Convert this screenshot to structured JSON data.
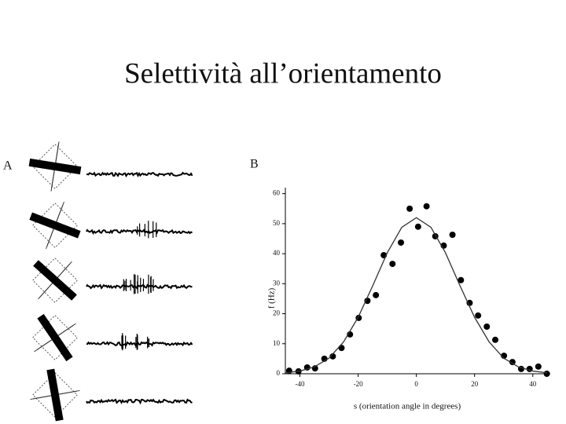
{
  "title": "Selettività all’orientamento",
  "panel_a": {
    "label": "A"
  },
  "chart_data": {
    "type": "scatter",
    "panel_label": "B",
    "x_label": "s (orientation angle in degrees)",
    "y_label": "f (Hz)",
    "xlim": [
      -45,
      46
    ],
    "ylim": [
      0,
      62
    ],
    "xticks": [
      -40,
      -20,
      0,
      20,
      40
    ],
    "yticks": [
      0,
      10,
      20,
      30,
      40,
      50,
      60
    ],
    "series": [
      {
        "type": "scatter",
        "color": "#000000",
        "x": [
          -43.7,
          -40.5,
          -37.5,
          -34.8,
          -31.6,
          -28.7,
          -25.7,
          -22.8,
          -19.8,
          -16.8,
          -13.9,
          -11.2,
          -8.2,
          -5.3,
          -2.3,
          0.6,
          3.5,
          6.5,
          9.4,
          12.4,
          15.3,
          18.3,
          21.2,
          24.2,
          27.1,
          30.1,
          33.0,
          36.0,
          38.9,
          41.9,
          44.8
        ],
        "values": [
          1.0,
          0.8,
          2.1,
          1.8,
          5.0,
          5.8,
          8.6,
          13.1,
          18.6,
          24.3,
          26.2,
          39.5,
          36.6,
          43.7,
          55.0,
          49.0,
          55.8,
          45.8,
          42.7,
          46.3,
          31.2,
          23.6,
          19.4,
          15.7,
          11.3,
          6.0,
          3.9,
          1.6,
          1.6,
          2.4,
          0
        ]
      },
      {
        "type": "line",
        "color": "#333333",
        "x": [
          -45,
          -40,
          -35,
          -30,
          -25,
          -20,
          -15,
          -10,
          -5,
          0,
          5,
          10,
          15,
          20,
          25,
          30,
          35,
          40,
          45
        ],
        "values": [
          0.3,
          0.9,
          2.3,
          5.2,
          10.6,
          18.8,
          29.3,
          40.3,
          48.8,
          52,
          48.8,
          40.3,
          29.3,
          18.8,
          10.6,
          5.2,
          2.3,
          0.9,
          0.3
        ]
      }
    ]
  }
}
